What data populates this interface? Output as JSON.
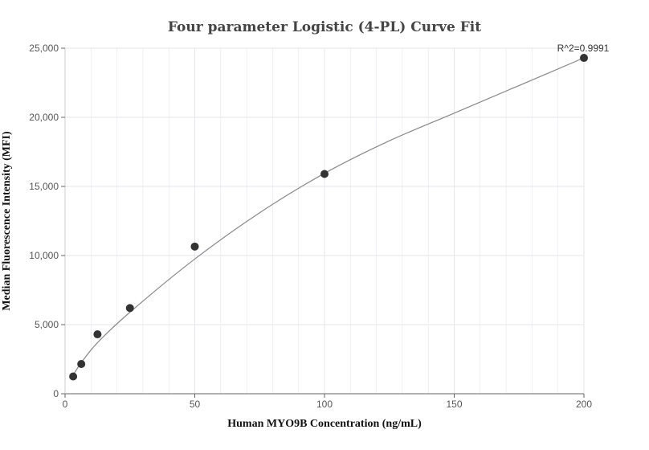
{
  "chart_data": {
    "type": "scatter",
    "title": "Four parameter Logistic (4-PL) Curve Fit",
    "xlabel": "Human MYO9B Concentration (ng/mL)",
    "ylabel": "Median Fluorescence Intensity (MFI)",
    "xlim": [
      0,
      200
    ],
    "ylim": [
      0,
      25000
    ],
    "x_ticks": [
      0,
      50,
      100,
      150,
      200
    ],
    "x_tick_labels": [
      "0",
      "50",
      "100",
      "150",
      "200"
    ],
    "y_ticks": [
      0,
      5000,
      10000,
      15000,
      20000,
      25000
    ],
    "y_tick_labels": [
      "0",
      "5,000",
      "10,000",
      "15,000",
      "20,000",
      "25,000"
    ],
    "grid": true,
    "series": [
      {
        "type": "scatter",
        "x": [
          3.125,
          6.25,
          12.5,
          25,
          50,
          100,
          200
        ],
        "y": [
          1250,
          2150,
          4300,
          6200,
          10650,
          15900,
          24300
        ]
      },
      {
        "type": "line",
        "x": [
          3.125,
          6.25,
          12.5,
          25,
          50,
          75,
          100,
          125,
          150,
          175,
          200
        ],
        "y": [
          1350,
          2250,
          3700,
          5900,
          9750,
          13100,
          15950,
          18300,
          20300,
          22300,
          24300
        ]
      }
    ],
    "annotations": [
      {
        "text": "R^2=0.9991",
        "x": 200,
        "y": 24300
      }
    ],
    "colors": {
      "points": "#333333",
      "curve": "#888888",
      "grid": "#e6e6ee",
      "axis": "#cccccc"
    }
  }
}
